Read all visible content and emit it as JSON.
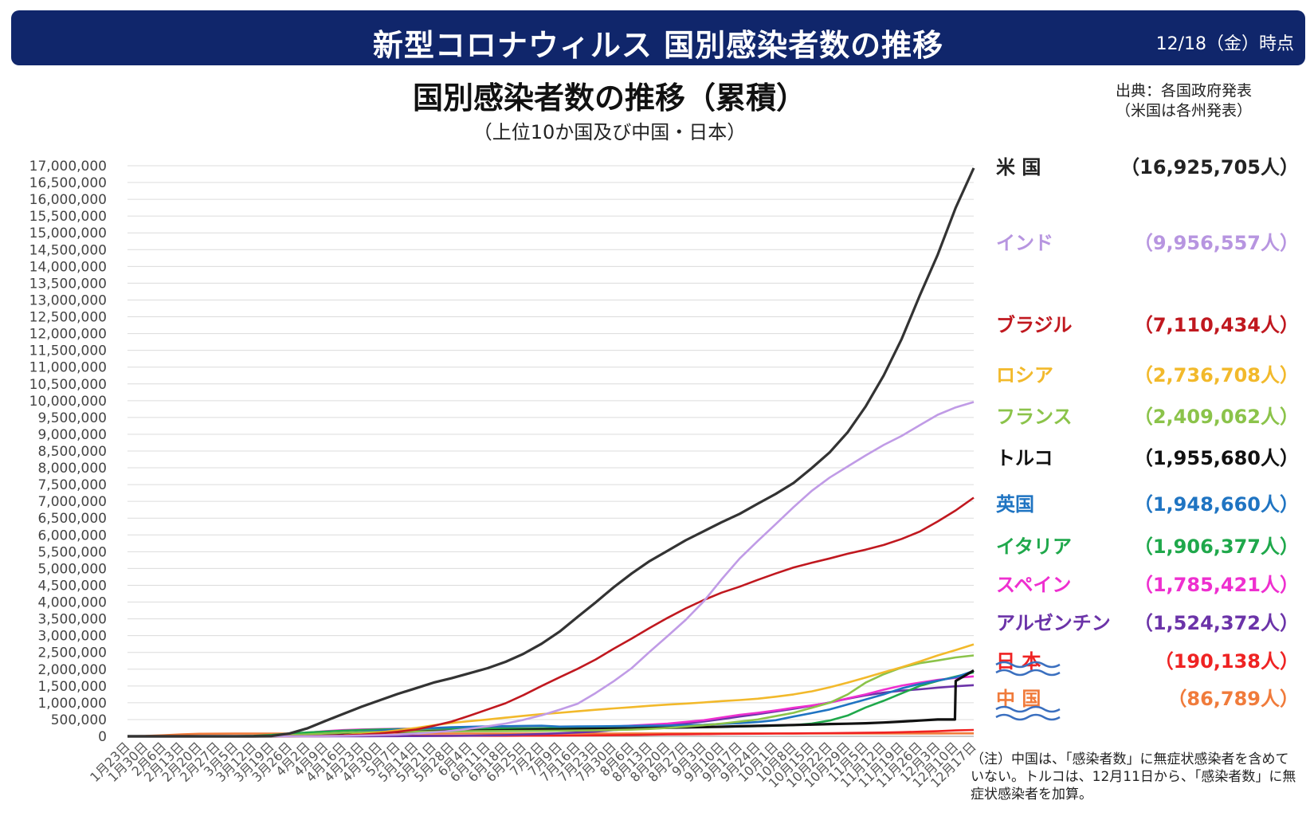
{
  "header": {
    "title": "新型コロナウィルス 国別感染者数の推移",
    "date": "12/18（金）時点"
  },
  "chart_title": "国別感染者数の推移（累積）",
  "chart_subtitle": "（上位10か国及び中国・日本）",
  "source": {
    "line1": "出典：各国政府発表",
    "line2": "（米国は各州発表）"
  },
  "note": "（注）中国は、「感染者数」に無症状感染者を含めていない。トルコは、12月11日から、「感染者数」に無症状感染者を加算。",
  "legend": [
    {
      "name": "米 国",
      "value": "（16,925,705人）",
      "color": "#222222"
    },
    {
      "name": "インド",
      "value": "（9,956,557人）",
      "color": "#b795e0"
    },
    {
      "name": "ブラジル",
      "value": "（7,110,434人）",
      "color": "#c0181f"
    },
    {
      "name": "ロシア",
      "value": "（2,736,708人）",
      "color": "#f2b92b"
    },
    {
      "name": "フランス",
      "value": "（2,409,062人）",
      "color": "#8bc34a"
    },
    {
      "name": "トルコ",
      "value": "（1,955,680人）",
      "color": "#111111"
    },
    {
      "name": "英国",
      "value": "（1,948,660人）",
      "color": "#1f74c2"
    },
    {
      "name": "イタリア",
      "value": "（1,906,377人）",
      "color": "#1fa84b"
    },
    {
      "name": "スペイン",
      "value": "（1,785,421人）",
      "color": "#ee2fcf"
    },
    {
      "name": "アルゼンチン",
      "value": "（1,524,372人）",
      "color": "#6b33a8"
    },
    {
      "name": "日 本",
      "value": "（190,138人）",
      "color": "#ef2323"
    },
    {
      "name": "中 国",
      "value": "（86,789人）",
      "color": "#f07b3b"
    }
  ],
  "chart_data": {
    "type": "line",
    "title": "国別感染者数の推移（累積）",
    "subtitle": "（上位10か国及び中国・日本）",
    "ylim": [
      0,
      17000000
    ],
    "y_ticks": [
      "0",
      "500,000",
      "1,000,000",
      "1,500,000",
      "2,000,000",
      "2,500,000",
      "3,000,000",
      "3,500,000",
      "4,000,000",
      "4,500,000",
      "5,000,000",
      "5,500,000",
      "6,000,000",
      "6,500,000",
      "7,000,000",
      "7,500,000",
      "8,000,000",
      "8,500,000",
      "9,000,000",
      "9,500,000",
      "10,000,000",
      "10,500,000",
      "11,000,000",
      "11,500,000",
      "12,000,000",
      "12,500,000",
      "13,000,000",
      "13,500,000",
      "14,000,000",
      "14,500,000",
      "15,000,000",
      "15,500,000",
      "16,000,000",
      "16,500,000",
      "17,000,000"
    ],
    "x_ticks": [
      "1月23日",
      "1月30日",
      "2月6日",
      "2月13日",
      "2月20日",
      "2月27日",
      "3月5日",
      "3月12日",
      "3月19日",
      "3月26日",
      "4月2日",
      "4月9日",
      "4月16日",
      "4月23日",
      "4月30日",
      "5月7日",
      "5月14日",
      "5月21日",
      "5月28日",
      "6月4日",
      "6月11日",
      "6月18日",
      "6月25日",
      "7月2日",
      "7月9日",
      "7月16日",
      "7月23日",
      "7月30日",
      "8月6日",
      "8月13日",
      "8月20日",
      "8月27日",
      "9月3日",
      "9月10日",
      "9月17日",
      "9月24日",
      "10月1日",
      "10月8日",
      "10月15日",
      "10月22日",
      "10月29日",
      "11月5日",
      "11月12日",
      "11月19日",
      "11月26日",
      "12月3日",
      "12月10日",
      "12月17日"
    ],
    "x_dates": [
      "1/23",
      "1/30",
      "2/6",
      "2/13",
      "2/20",
      "2/27",
      "3/5",
      "3/12",
      "3/19",
      "3/26",
      "4/2",
      "4/9",
      "4/16",
      "4/23",
      "4/30",
      "5/7",
      "5/14",
      "5/21",
      "5/28",
      "6/4",
      "6/11",
      "6/18",
      "6/25",
      "7/2",
      "7/9",
      "7/16",
      "7/23",
      "7/30",
      "8/6",
      "8/13",
      "8/20",
      "8/27",
      "9/3",
      "9/10",
      "9/17",
      "9/24",
      "10/1",
      "10/8",
      "10/15",
      "10/22",
      "10/29",
      "11/5",
      "11/12",
      "11/19",
      "11/26",
      "12/3",
      "12/10",
      "12/17"
    ],
    "series": [
      {
        "name": "米 国",
        "color": "#333333",
        "width": 3.2,
        "values": [
          0,
          0,
          0,
          0,
          0,
          0,
          0,
          0,
          10000,
          85000,
          240000,
          460000,
          670000,
          880000,
          1070000,
          1260000,
          1430000,
          1600000,
          1730000,
          1880000,
          2030000,
          2220000,
          2460000,
          2760000,
          3120000,
          3560000,
          3990000,
          4440000,
          4850000,
          5220000,
          5530000,
          5840000,
          6110000,
          6380000,
          6630000,
          6930000,
          7220000,
          7550000,
          7990000,
          8460000,
          9060000,
          9830000,
          10750000,
          11840000,
          13130000,
          14350000,
          15750000,
          16930000
        ]
      },
      {
        "name": "インド",
        "color": "#c09be6",
        "width": 2.6,
        "values": [
          0,
          0,
          0,
          0,
          0,
          0,
          0,
          0,
          0,
          0,
          2000,
          6000,
          13000,
          23000,
          35000,
          53000,
          82000,
          118000,
          165000,
          227000,
          298000,
          381000,
          491000,
          627000,
          794000,
          970000,
          1290000,
          1640000,
          2030000,
          2520000,
          2990000,
          3470000,
          4020000,
          4680000,
          5300000,
          5820000,
          6320000,
          6830000,
          7310000,
          7710000,
          8040000,
          8370000,
          8680000,
          8950000,
          9270000,
          9580000,
          9800000,
          9960000
        ]
      },
      {
        "name": "ブラジル",
        "color": "#c0181f",
        "width": 2.6,
        "values": [
          0,
          0,
          0,
          0,
          0,
          0,
          0,
          0,
          600,
          2900,
          8000,
          18000,
          30000,
          50000,
          86000,
          135000,
          200000,
          310000,
          440000,
          615000,
          800000,
          985000,
          1230000,
          1500000,
          1760000,
          2010000,
          2290000,
          2610000,
          2910000,
          3230000,
          3530000,
          3810000,
          4060000,
          4280000,
          4460000,
          4660000,
          4850000,
          5030000,
          5170000,
          5300000,
          5440000,
          5560000,
          5700000,
          5880000,
          6100000,
          6400000,
          6730000,
          7110000
        ]
      },
      {
        "name": "ロシア",
        "color": "#f2b92b",
        "width": 2.6,
        "values": [
          0,
          0,
          0,
          0,
          0,
          0,
          0,
          0,
          250,
          1300,
          4000,
          12000,
          32000,
          68000,
          115000,
          180000,
          250000,
          330000,
          400000,
          450000,
          500000,
          555000,
          610000,
          660000,
          700000,
          745000,
          790000,
          830000,
          870000,
          910000,
          945000,
          975000,
          1010000,
          1050000,
          1080000,
          1120000,
          1180000,
          1250000,
          1340000,
          1460000,
          1600000,
          1750000,
          1910000,
          2060000,
          2230000,
          2410000,
          2570000,
          2740000
        ]
      },
      {
        "name": "フランス",
        "color": "#8bc34a",
        "width": 2.6,
        "values": [
          0,
          0,
          0,
          0,
          0,
          0,
          200,
          3000,
          11000,
          30000,
          60000,
          85000,
          106000,
          122000,
          130000,
          138000,
          141000,
          145000,
          150000,
          154000,
          157000,
          160000,
          162000,
          165000,
          169000,
          174000,
          180000,
          188000,
          200000,
          220000,
          250000,
          290000,
          330000,
          380000,
          440000,
          500000,
          600000,
          700000,
          850000,
          1000000,
          1250000,
          1600000,
          1850000,
          2050000,
          2180000,
          2260000,
          2350000,
          2410000
        ]
      },
      {
        "name": "トルコ",
        "color": "#111111",
        "width": 3.2,
        "values": [
          0,
          0,
          0,
          0,
          0,
          0,
          0,
          0,
          400,
          3600,
          18000,
          42000,
          75000,
          101000,
          122000,
          135000,
          145000,
          154000,
          161000,
          167000,
          174000,
          184000,
          193000,
          201000,
          208000,
          215000,
          222000,
          229000,
          236000,
          244000,
          254000,
          265000,
          275000,
          286000,
          299000,
          311000,
          325000,
          338000,
          350000,
          365000,
          375000,
          390000,
          410000,
          440000,
          470000,
          500000,
          1650000,
          1960000
        ],
        "note_index": 46
      },
      {
        "name": "英国",
        "color": "#1f74c2",
        "width": 2.6,
        "values": [
          0,
          0,
          0,
          0,
          0,
          0,
          100,
          500,
          3000,
          12000,
          35000,
          65000,
          100000,
          135000,
          165000,
          200000,
          230000,
          250000,
          270000,
          285000,
          295000,
          302000,
          310000,
          315000,
          290000,
          295000,
          298000,
          303000,
          310000,
          315000,
          322000,
          332000,
          345000,
          370000,
          395000,
          425000,
          480000,
          590000,
          690000,
          800000,
          950000,
          1100000,
          1250000,
          1430000,
          1560000,
          1660000,
          1760000,
          1950000
        ]
      },
      {
        "name": "イタリア",
        "color": "#1fa84b",
        "width": 2.6,
        "values": [
          0,
          0,
          0,
          0,
          0,
          1000,
          3800,
          15000,
          41000,
          80000,
          115000,
          143000,
          168000,
          190000,
          205000,
          215000,
          223000,
          228000,
          232000,
          234000,
          236000,
          238000,
          239000,
          241000,
          242000,
          244000,
          246000,
          248000,
          250000,
          253000,
          258000,
          265000,
          272000,
          284000,
          294000,
          305000,
          316000,
          335000,
          380000,
          470000,
          620000,
          860000,
          1060000,
          1280000,
          1500000,
          1650000,
          1780000,
          1906000
        ]
      },
      {
        "name": "スペイン",
        "color": "#ee2fcf",
        "width": 2.6,
        "values": [
          0,
          0,
          0,
          0,
          0,
          0,
          300,
          3000,
          18000,
          57000,
          110000,
          155000,
          185000,
          205000,
          215000,
          222000,
          229000,
          235000,
          238000,
          240000,
          243000,
          246000,
          248000,
          250000,
          252000,
          258000,
          270000,
          290000,
          320000,
          350000,
          380000,
          430000,
          480000,
          560000,
          640000,
          700000,
          770000,
          850000,
          920000,
          1000000,
          1130000,
          1250000,
          1390000,
          1510000,
          1600000,
          1680000,
          1740000,
          1785000
        ]
      },
      {
        "name": "アルゼンチン",
        "color": "#6b33a8",
        "width": 2.6,
        "values": [
          0,
          0,
          0,
          0,
          0,
          0,
          0,
          0,
          100,
          500,
          1200,
          1800,
          2500,
          3300,
          4300,
          5600,
          7000,
          9000,
          14000,
          19000,
          28000,
          38000,
          52000,
          70000,
          90000,
          115000,
          140000,
          185000,
          225000,
          270000,
          330000,
          385000,
          440000,
          510000,
          590000,
          660000,
          740000,
          820000,
          910000,
          1010000,
          1120000,
          1220000,
          1300000,
          1360000,
          1400000,
          1450000,
          1490000,
          1524000
        ]
      },
      {
        "name": "日 本",
        "color": "#ef2323",
        "width": 2.6,
        "values": [
          0,
          0,
          0,
          0,
          0,
          0,
          400,
          700,
          1000,
          1400,
          2600,
          5000,
          8500,
          12000,
          14300,
          15400,
          16100,
          16500,
          16800,
          17000,
          17400,
          17800,
          18200,
          18900,
          20800,
          23500,
          28000,
          33000,
          40000,
          48000,
          56000,
          62000,
          67000,
          71000,
          75000,
          78000,
          82000,
          86000,
          90000,
          95000,
          100000,
          104000,
          111000,
          124000,
          137000,
          153000,
          175000,
          190000
        ]
      },
      {
        "name": "中 国",
        "color": "#f07b3b",
        "width": 2.6,
        "values": [
          600,
          9700,
          31000,
          60000,
          75000,
          78000,
          80500,
          80800,
          81000,
          81300,
          81600,
          81900,
          82300,
          82800,
          82900,
          82900,
          82900,
          82900,
          83000,
          83000,
          83100,
          83300,
          83400,
          83500,
          83600,
          83600,
          83700,
          83900,
          84500,
          84800,
          84900,
          85000,
          85100,
          85200,
          85300,
          85300,
          85400,
          85500,
          85600,
          85700,
          85800,
          85900,
          86000,
          86100,
          86300,
          86500,
          86700,
          86789
        ]
      }
    ]
  }
}
